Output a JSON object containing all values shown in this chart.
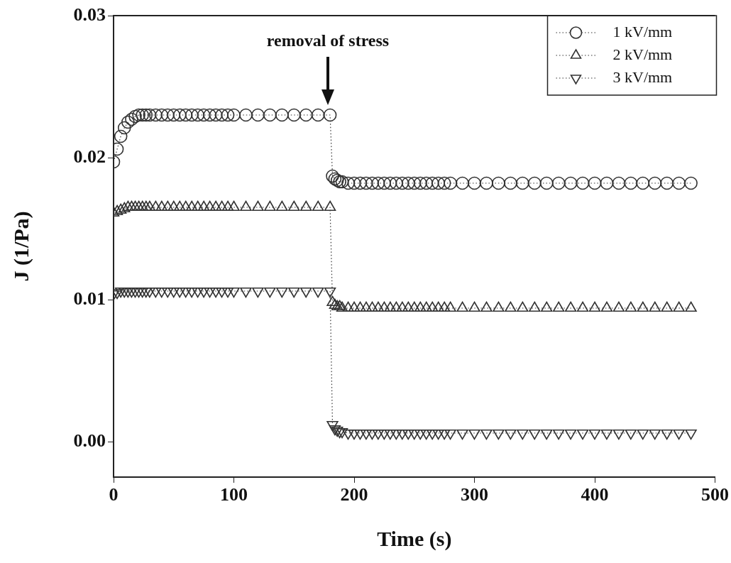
{
  "chart_data": {
    "type": "line",
    "xlabel": "Time (s)",
    "ylabel": "J (1/Pa)",
    "x": [
      0,
      3,
      6,
      9,
      12,
      15,
      18,
      21,
      24,
      27,
      30,
      35,
      40,
      45,
      50,
      55,
      60,
      65,
      70,
      75,
      80,
      85,
      90,
      95,
      100,
      110,
      120,
      130,
      140,
      150,
      160,
      170,
      180,
      182,
      184,
      186,
      188,
      190,
      195,
      200,
      205,
      210,
      215,
      220,
      225,
      230,
      235,
      240,
      245,
      250,
      255,
      260,
      265,
      270,
      275,
      280,
      290,
      300,
      310,
      320,
      330,
      340,
      350,
      360,
      370,
      380,
      390,
      400,
      410,
      420,
      430,
      440,
      450,
      460,
      470,
      480
    ],
    "series": [
      {
        "name": "1 kV/mm",
        "color": "#333333",
        "marker": "circle",
        "values": [
          0.0197,
          0.0206,
          0.0215,
          0.0221,
          0.0225,
          0.0227,
          0.0229,
          0.023,
          0.023,
          0.023,
          0.023,
          0.023,
          0.023,
          0.023,
          0.023,
          0.023,
          0.023,
          0.023,
          0.023,
          0.023,
          0.023,
          0.023,
          0.023,
          0.023,
          0.023,
          0.023,
          0.023,
          0.023,
          0.023,
          0.023,
          0.023,
          0.023,
          0.023,
          0.0187,
          0.0185,
          0.0184,
          0.0183,
          0.0183,
          0.0182,
          0.0182,
          0.0182,
          0.0182,
          0.0182,
          0.0182,
          0.0182,
          0.0182,
          0.0182,
          0.0182,
          0.0182,
          0.0182,
          0.0182,
          0.0182,
          0.0182,
          0.0182,
          0.0182,
          0.0182,
          0.0182,
          0.0182,
          0.0182,
          0.0182,
          0.0182,
          0.0182,
          0.0182,
          0.0182,
          0.0182,
          0.0182,
          0.0182,
          0.0182,
          0.0182,
          0.0182,
          0.0182,
          0.0182,
          0.0182,
          0.0182,
          0.0182,
          0.0182
        ]
      },
      {
        "name": "2 kV/mm",
        "color": "#333333",
        "marker": "triangle",
        "values": [
          0.0161,
          0.0162,
          0.0163,
          0.0164,
          0.0165,
          0.0165,
          0.0165,
          0.0165,
          0.0165,
          0.0165,
          0.0165,
          0.0165,
          0.0165,
          0.0165,
          0.0165,
          0.0165,
          0.0165,
          0.0165,
          0.0165,
          0.0165,
          0.0165,
          0.0165,
          0.0165,
          0.0165,
          0.0165,
          0.0165,
          0.0165,
          0.0165,
          0.0165,
          0.0165,
          0.0165,
          0.0165,
          0.0165,
          0.0098,
          0.0096,
          0.0095,
          0.0095,
          0.0094,
          0.0094,
          0.0094,
          0.0094,
          0.0094,
          0.0094,
          0.0094,
          0.0094,
          0.0094,
          0.0094,
          0.0094,
          0.0094,
          0.0094,
          0.0094,
          0.0094,
          0.0094,
          0.0094,
          0.0094,
          0.0094,
          0.0094,
          0.0094,
          0.0094,
          0.0094,
          0.0094,
          0.0094,
          0.0094,
          0.0094,
          0.0094,
          0.0094,
          0.0094,
          0.0094,
          0.0094,
          0.0094,
          0.0094,
          0.0094,
          0.0094,
          0.0094,
          0.0094,
          0.0094
        ]
      },
      {
        "name": "3 kV/mm",
        "color": "#333333",
        "marker": "triangle-down",
        "values": [
          0.0104,
          0.0105,
          0.0106,
          0.0106,
          0.0106,
          0.0106,
          0.0106,
          0.0106,
          0.0106,
          0.0106,
          0.0106,
          0.0106,
          0.0106,
          0.0106,
          0.0106,
          0.0106,
          0.0106,
          0.0106,
          0.0106,
          0.0106,
          0.0106,
          0.0106,
          0.0106,
          0.0106,
          0.0106,
          0.0106,
          0.0106,
          0.0106,
          0.0106,
          0.0106,
          0.0106,
          0.0106,
          0.0106,
          0.0012,
          0.0009,
          0.0008,
          0.0007,
          0.0007,
          0.0006,
          0.0006,
          0.0006,
          0.0006,
          0.0006,
          0.0006,
          0.0006,
          0.0006,
          0.0006,
          0.0006,
          0.0006,
          0.0006,
          0.0006,
          0.0006,
          0.0006,
          0.0006,
          0.0006,
          0.0006,
          0.0006,
          0.0006,
          0.0006,
          0.0006,
          0.0006,
          0.0006,
          0.0006,
          0.0006,
          0.0006,
          0.0006,
          0.0006,
          0.0006,
          0.0006,
          0.0006,
          0.0006,
          0.0006,
          0.0006,
          0.0006,
          0.0006,
          0.0006
        ]
      }
    ],
    "xlim": [
      0,
      500
    ],
    "xticks": [
      0,
      100,
      200,
      300,
      400,
      500
    ],
    "ylim": [
      -0.0025,
      0.03
    ],
    "yticks": [
      {
        "value": 0,
        "label": "0.00"
      },
      {
        "value": 0.01,
        "label": "0.01"
      },
      {
        "value": 0.02,
        "label": "0.02"
      },
      {
        "value": 0.03,
        "label": "0.03"
      }
    ],
    "line_style": "dotted",
    "grid": false,
    "legend": "top right",
    "annotations": [
      "removal of stress"
    ]
  }
}
